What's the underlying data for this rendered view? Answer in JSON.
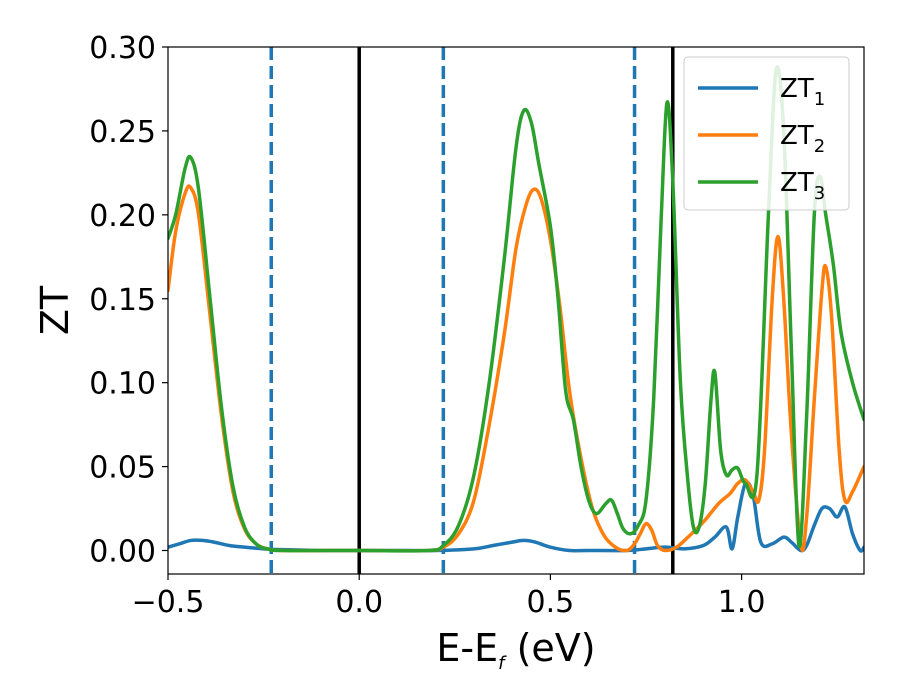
{
  "chart_data": {
    "type": "line",
    "xlabel": "E-E",
    "xlabel_sub": "f",
    "xlabel_unit": " (eV)",
    "ylabel": "ZT",
    "xlim": [
      -0.5,
      1.32
    ],
    "ylim": [
      -0.014,
      0.3
    ],
    "x_ticks": [
      -0.5,
      0.0,
      0.5,
      1.0
    ],
    "x_tick_labels": [
      "−0.5",
      "0.0",
      "0.5",
      "1.0"
    ],
    "y_ticks": [
      0.0,
      0.05,
      0.1,
      0.15,
      0.2,
      0.25,
      0.3
    ],
    "y_tick_labels": [
      "0.00",
      "0.05",
      "0.10",
      "0.15",
      "0.20",
      "0.25",
      "0.30"
    ],
    "grid": false,
    "legend_position": "top-right",
    "vertical_lines": [
      {
        "x": -0.23,
        "style": "dashed",
        "color": "#1f77b4"
      },
      {
        "x": 0.0,
        "style": "solid",
        "color": "#000000"
      },
      {
        "x": 0.22,
        "style": "dashed",
        "color": "#1f77b4"
      },
      {
        "x": 0.72,
        "style": "dashed",
        "color": "#1f77b4"
      },
      {
        "x": 0.82,
        "style": "solid",
        "color": "#000000"
      }
    ],
    "series": [
      {
        "name": "ZT",
        "name_sub": "1",
        "color": "#1f77b4",
        "points": [
          [
            -0.5,
            0.002
          ],
          [
            -0.47,
            0.004
          ],
          [
            -0.44,
            0.006
          ],
          [
            -0.41,
            0.006
          ],
          [
            -0.38,
            0.005
          ],
          [
            -0.34,
            0.003
          ],
          [
            -0.3,
            0.002
          ],
          [
            -0.25,
            0.001
          ],
          [
            -0.2,
            0.0005
          ],
          [
            -0.1,
            0.0
          ],
          [
            0.0,
            0.0
          ],
          [
            0.1,
            0.0
          ],
          [
            0.2,
            0.0
          ],
          [
            0.3,
            0.001
          ],
          [
            0.35,
            0.003
          ],
          [
            0.4,
            0.005
          ],
          [
            0.43,
            0.006
          ],
          [
            0.46,
            0.005
          ],
          [
            0.5,
            0.002
          ],
          [
            0.55,
            0.0
          ],
          [
            0.6,
            0.0
          ],
          [
            0.7,
            0.0
          ],
          [
            0.75,
            0.001
          ],
          [
            0.8,
            0.002
          ],
          [
            0.85,
            0.001
          ],
          [
            0.9,
            0.003
          ],
          [
            0.93,
            0.008
          ],
          [
            0.96,
            0.014
          ],
          [
            0.975,
            0.001
          ],
          [
            0.99,
            0.02
          ],
          [
            1.01,
            0.04
          ],
          [
            1.03,
            0.033
          ],
          [
            1.05,
            0.005
          ],
          [
            1.08,
            0.004
          ],
          [
            1.11,
            0.008
          ],
          [
            1.13,
            0.005
          ],
          [
            1.155,
            0.0
          ],
          [
            1.17,
            0.003
          ],
          [
            1.19,
            0.015
          ],
          [
            1.21,
            0.025
          ],
          [
            1.23,
            0.025
          ],
          [
            1.25,
            0.02
          ],
          [
            1.27,
            0.026
          ],
          [
            1.29,
            0.01
          ],
          [
            1.31,
            0.0
          ],
          [
            1.32,
            0.002
          ]
        ]
      },
      {
        "name": "ZT",
        "name_sub": "2",
        "color": "#ff7f0e",
        "points": [
          [
            -0.5,
            0.155
          ],
          [
            -0.48,
            0.19
          ],
          [
            -0.455,
            0.213
          ],
          [
            -0.44,
            0.216
          ],
          [
            -0.42,
            0.2
          ],
          [
            -0.39,
            0.14
          ],
          [
            -0.36,
            0.08
          ],
          [
            -0.33,
            0.035
          ],
          [
            -0.3,
            0.013
          ],
          [
            -0.27,
            0.004
          ],
          [
            -0.24,
            0.001
          ],
          [
            -0.2,
            0.0
          ],
          [
            0.0,
            0.0
          ],
          [
            0.18,
            0.0
          ],
          [
            0.22,
            0.002
          ],
          [
            0.26,
            0.01
          ],
          [
            0.3,
            0.03
          ],
          [
            0.34,
            0.075
          ],
          [
            0.38,
            0.13
          ],
          [
            0.41,
            0.18
          ],
          [
            0.435,
            0.205
          ],
          [
            0.455,
            0.215
          ],
          [
            0.475,
            0.21
          ],
          [
            0.5,
            0.185
          ],
          [
            0.525,
            0.145
          ],
          [
            0.55,
            0.095
          ],
          [
            0.58,
            0.055
          ],
          [
            0.61,
            0.025
          ],
          [
            0.64,
            0.009
          ],
          [
            0.67,
            0.002
          ],
          [
            0.7,
            0.0
          ],
          [
            0.72,
            0.004
          ],
          [
            0.735,
            0.01
          ],
          [
            0.75,
            0.016
          ],
          [
            0.765,
            0.012
          ],
          [
            0.78,
            0.003
          ],
          [
            0.8,
            0.0
          ],
          [
            0.83,
            0.002
          ],
          [
            0.86,
            0.008
          ],
          [
            0.9,
            0.017
          ],
          [
            0.94,
            0.028
          ],
          [
            0.97,
            0.034
          ],
          [
            0.99,
            0.04
          ],
          [
            1.01,
            0.042
          ],
          [
            1.03,
            0.035
          ],
          [
            1.045,
            0.03
          ],
          [
            1.06,
            0.06
          ],
          [
            1.08,
            0.15
          ],
          [
            1.095,
            0.187
          ],
          [
            1.11,
            0.15
          ],
          [
            1.13,
            0.07
          ],
          [
            1.155,
            0.003
          ],
          [
            1.17,
            0.02
          ],
          [
            1.19,
            0.09
          ],
          [
            1.21,
            0.155
          ],
          [
            1.22,
            0.169
          ],
          [
            1.235,
            0.14
          ],
          [
            1.255,
            0.06
          ],
          [
            1.27,
            0.03
          ],
          [
            1.29,
            0.035
          ],
          [
            1.32,
            0.05
          ]
        ]
      },
      {
        "name": "ZT",
        "name_sub": "3",
        "color": "#2ca02c",
        "points": [
          [
            -0.5,
            0.186
          ],
          [
            -0.48,
            0.2
          ],
          [
            -0.455,
            0.228
          ],
          [
            -0.44,
            0.234
          ],
          [
            -0.42,
            0.215
          ],
          [
            -0.39,
            0.15
          ],
          [
            -0.36,
            0.085
          ],
          [
            -0.33,
            0.038
          ],
          [
            -0.3,
            0.014
          ],
          [
            -0.27,
            0.004
          ],
          [
            -0.24,
            0.001
          ],
          [
            -0.2,
            0.0
          ],
          [
            0.0,
            0.0
          ],
          [
            0.18,
            0.0
          ],
          [
            0.22,
            0.003
          ],
          [
            0.26,
            0.015
          ],
          [
            0.3,
            0.045
          ],
          [
            0.34,
            0.1
          ],
          [
            0.38,
            0.175
          ],
          [
            0.41,
            0.24
          ],
          [
            0.43,
            0.262
          ],
          [
            0.45,
            0.255
          ],
          [
            0.47,
            0.23
          ],
          [
            0.5,
            0.193
          ],
          [
            0.52,
            0.15
          ],
          [
            0.54,
            0.095
          ],
          [
            0.56,
            0.078
          ],
          [
            0.58,
            0.05
          ],
          [
            0.6,
            0.03
          ],
          [
            0.62,
            0.022
          ],
          [
            0.645,
            0.028
          ],
          [
            0.66,
            0.03
          ],
          [
            0.675,
            0.022
          ],
          [
            0.69,
            0.013
          ],
          [
            0.71,
            0.01
          ],
          [
            0.73,
            0.015
          ],
          [
            0.75,
            0.03
          ],
          [
            0.77,
            0.09
          ],
          [
            0.79,
            0.2
          ],
          [
            0.805,
            0.267
          ],
          [
            0.82,
            0.22
          ],
          [
            0.84,
            0.1
          ],
          [
            0.86,
            0.04
          ],
          [
            0.875,
            0.013
          ],
          [
            0.89,
            0.015
          ],
          [
            0.905,
            0.04
          ],
          [
            0.92,
            0.09
          ],
          [
            0.93,
            0.106
          ],
          [
            0.945,
            0.06
          ],
          [
            0.96,
            0.045
          ],
          [
            0.975,
            0.048
          ],
          [
            0.99,
            0.049
          ],
          [
            1.01,
            0.04
          ],
          [
            1.04,
            0.045
          ],
          [
            1.07,
            0.2
          ],
          [
            1.09,
            0.286
          ],
          [
            1.11,
            0.25
          ],
          [
            1.13,
            0.12
          ],
          [
            1.15,
            0.003
          ],
          [
            1.17,
            0.08
          ],
          [
            1.19,
            0.2
          ],
          [
            1.205,
            0.223
          ],
          [
            1.22,
            0.2
          ],
          [
            1.24,
            0.17
          ],
          [
            1.26,
            0.13
          ],
          [
            1.29,
            0.1
          ],
          [
            1.32,
            0.078
          ]
        ]
      }
    ]
  }
}
